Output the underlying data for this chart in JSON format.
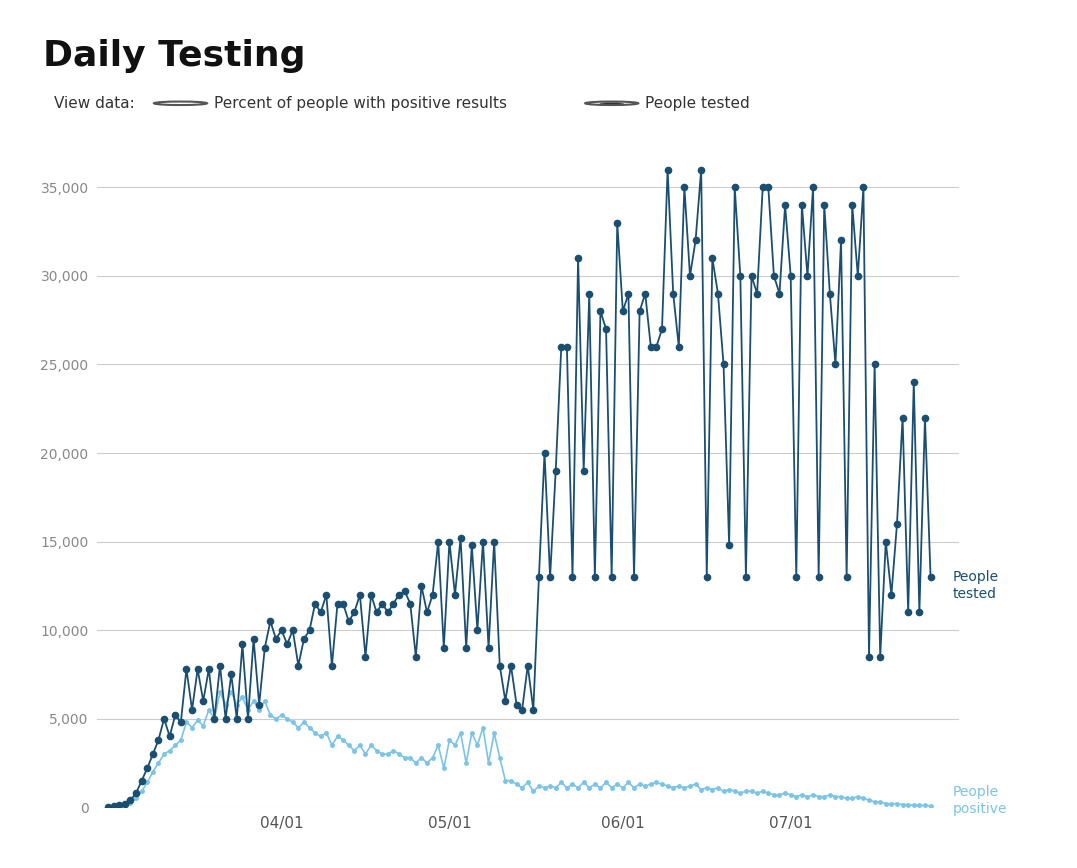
{
  "title": "Daily Testing",
  "background_color": "#ffffff",
  "header_bg": "#e8e8e8",
  "people_tested_color": "#1a4f72",
  "people_positive_color": "#7ac4e8",
  "people_tested_label": "People\ntested",
  "people_positive_label": "People\npositive",
  "ylim": [
    0,
    37000
  ],
  "yticks": [
    0,
    5000,
    10000,
    15000,
    20000,
    25000,
    30000,
    35000
  ],
  "xlabel_dates": [
    "04/01",
    "05/01",
    "06/01",
    "07/01"
  ],
  "tick_days": [
    31,
    61,
    92,
    122
  ],
  "total_days": 147,
  "radio_option1": "Percent of people with positive results",
  "radio_option2": "People tested",
  "people_tested": [
    0,
    50,
    100,
    200,
    400,
    800,
    1500,
    2200,
    3000,
    3800,
    5000,
    4000,
    5200,
    4800,
    7800,
    5500,
    7800,
    6000,
    7800,
    5000,
    8000,
    5000,
    7500,
    5000,
    9200,
    5000,
    9500,
    5800,
    9000,
    10500,
    9500,
    10000,
    9200,
    10000,
    8000,
    9500,
    10000,
    11500,
    11000,
    12000,
    8000,
    11500,
    11500,
    10500,
    11000,
    12000,
    8500,
    12000,
    11000,
    11500,
    11000,
    11500,
    12000,
    12200,
    11500,
    8500,
    12500,
    11000,
    12000,
    15000,
    9000,
    15000,
    12000,
    15200,
    9000,
    14800,
    10000,
    15000,
    9000,
    15000,
    8000,
    6000,
    8000,
    5800,
    5500,
    8000,
    5500,
    13000,
    20000,
    13000,
    19000,
    26000,
    26000,
    13000,
    31000,
    19000,
    29000,
    13000,
    28000,
    27000,
    13000,
    33000,
    28000,
    29000,
    13000,
    28000,
    29000,
    26000,
    26000,
    27000,
    36000,
    29000,
    26000,
    35000,
    30000,
    32000,
    36000,
    13000,
    31000,
    29000,
    25000,
    14800,
    35000,
    30000,
    13000,
    30000,
    29000,
    35000,
    35000,
    30000,
    29000,
    34000,
    30000,
    13000,
    34000,
    30000,
    35000,
    13000,
    34000,
    29000,
    25000,
    32000,
    13000,
    34000,
    30000,
    35000,
    8500,
    25000,
    8500,
    15000,
    12000,
    16000,
    22000,
    11000,
    24000,
    11000,
    22000,
    13000
  ],
  "people_positive": [
    0,
    30,
    60,
    120,
    250,
    500,
    900,
    1400,
    2000,
    2500,
    3000,
    3200,
    3500,
    3800,
    4800,
    4500,
    4900,
    4600,
    5500,
    5000,
    6500,
    5800,
    6500,
    5800,
    6200,
    5500,
    6000,
    5500,
    6000,
    5200,
    5000,
    5200,
    5000,
    4800,
    4500,
    4800,
    4500,
    4200,
    4000,
    4200,
    3500,
    4000,
    3800,
    3500,
    3200,
    3500,
    3000,
    3500,
    3200,
    3000,
    3000,
    3200,
    3000,
    2800,
    2800,
    2500,
    2800,
    2500,
    2800,
    3500,
    2200,
    3800,
    3500,
    4200,
    2500,
    4200,
    3500,
    4500,
    2500,
    4200,
    2800,
    1500,
    1500,
    1300,
    1100,
    1400,
    900,
    1200,
    1100,
    1200,
    1100,
    1400,
    1100,
    1300,
    1100,
    1400,
    1100,
    1300,
    1100,
    1400,
    1100,
    1300,
    1100,
    1400,
    1100,
    1300,
    1200,
    1300,
    1400,
    1300,
    1200,
    1100,
    1200,
    1100,
    1200,
    1300,
    1000,
    1100,
    1000,
    1100,
    900,
    1000,
    900,
    800,
    900,
    900,
    800,
    900,
    800,
    700,
    700,
    800,
    700,
    600,
    700,
    600,
    700,
    600,
    600,
    700,
    600,
    600,
    500,
    500,
    600,
    500,
    400,
    300,
    300,
    200,
    200,
    200,
    150,
    150,
    100,
    100,
    100,
    80
  ]
}
